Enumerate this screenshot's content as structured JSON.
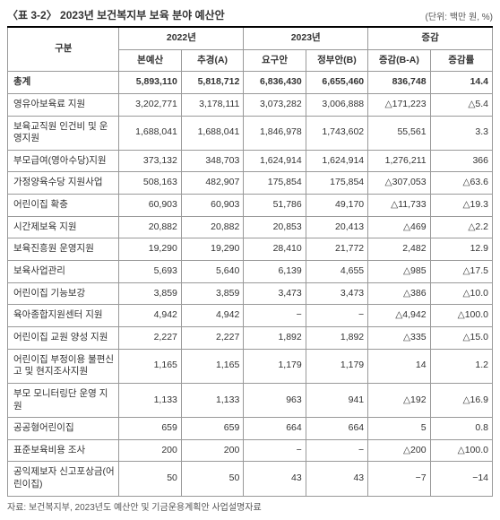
{
  "title": "〈표 3-2〉 2023년 보건복지부 보육 분야 예산안",
  "unit": "(단위: 백만 원, %)",
  "header": {
    "col1": "구분",
    "group1": "2022년",
    "group2": "2023년",
    "group3": "증감",
    "sub": [
      "본예산",
      "추경(A)",
      "요구안",
      "정부안(B)",
      "증감(B-A)",
      "증감률"
    ]
  },
  "rows": [
    {
      "label": "총계",
      "v": [
        "5,893,110",
        "5,818,712",
        "6,836,430",
        "6,655,460",
        "836,748",
        "14.4"
      ],
      "total": true
    },
    {
      "label": "영유아보육료 지원",
      "v": [
        "3,202,771",
        "3,178,111",
        "3,073,282",
        "3,006,888",
        "△171,223",
        "△5.4"
      ]
    },
    {
      "label": "보육교직원 인건비 및 운영지원",
      "v": [
        "1,688,041",
        "1,688,041",
        "1,846,978",
        "1,743,602",
        "55,561",
        "3.3"
      ]
    },
    {
      "label": "부모급여(영아수당)지원",
      "v": [
        "373,132",
        "348,703",
        "1,624,914",
        "1,624,914",
        "1,276,211",
        "366"
      ]
    },
    {
      "label": "가정양육수당 지원사업",
      "v": [
        "508,163",
        "482,907",
        "175,854",
        "175,854",
        "△307,053",
        "△63.6"
      ]
    },
    {
      "label": "어린이집 확충",
      "v": [
        "60,903",
        "60,903",
        "51,786",
        "49,170",
        "△11,733",
        "△19.3"
      ]
    },
    {
      "label": "시간제보육 지원",
      "v": [
        "20,882",
        "20,882",
        "20,853",
        "20,413",
        "△469",
        "△2.2"
      ]
    },
    {
      "label": "보육진흥원 운영지원",
      "v": [
        "19,290",
        "19,290",
        "28,410",
        "21,772",
        "2,482",
        "12.9"
      ]
    },
    {
      "label": "보육사업관리",
      "v": [
        "5,693",
        "5,640",
        "6,139",
        "4,655",
        "△985",
        "△17.5"
      ]
    },
    {
      "label": "어린이집 기능보강",
      "v": [
        "3,859",
        "3,859",
        "3,473",
        "3,473",
        "△386",
        "△10.0"
      ]
    },
    {
      "label": "육아종합지원센터 지원",
      "v": [
        "4,942",
        "4,942",
        "−",
        "−",
        "△4,942",
        "△100.0"
      ]
    },
    {
      "label": "어린이집 교원 양성 지원",
      "v": [
        "2,227",
        "2,227",
        "1,892",
        "1,892",
        "△335",
        "△15.0"
      ]
    },
    {
      "label": "어린이집 부정이용 불편신고 및 현지조사지원",
      "v": [
        "1,165",
        "1,165",
        "1,179",
        "1,179",
        "14",
        "1.2"
      ]
    },
    {
      "label": "부모 모니터링단 운영 지원",
      "v": [
        "1,133",
        "1,133",
        "963",
        "941",
        "△192",
        "△16.9"
      ]
    },
    {
      "label": "공공형어린이집",
      "v": [
        "659",
        "659",
        "664",
        "664",
        "5",
        "0.8"
      ]
    },
    {
      "label": "표준보육비용 조사",
      "v": [
        "200",
        "200",
        "−",
        "−",
        "△200",
        "△100.0"
      ]
    },
    {
      "label": "공익제보자 신고포상금(어린이집)",
      "v": [
        "50",
        "50",
        "43",
        "43",
        "−7",
        "−14"
      ]
    }
  ],
  "source": "자료: 보건복지부, 2023년도 예산안 및 기금운용계획안 사업설명자료"
}
